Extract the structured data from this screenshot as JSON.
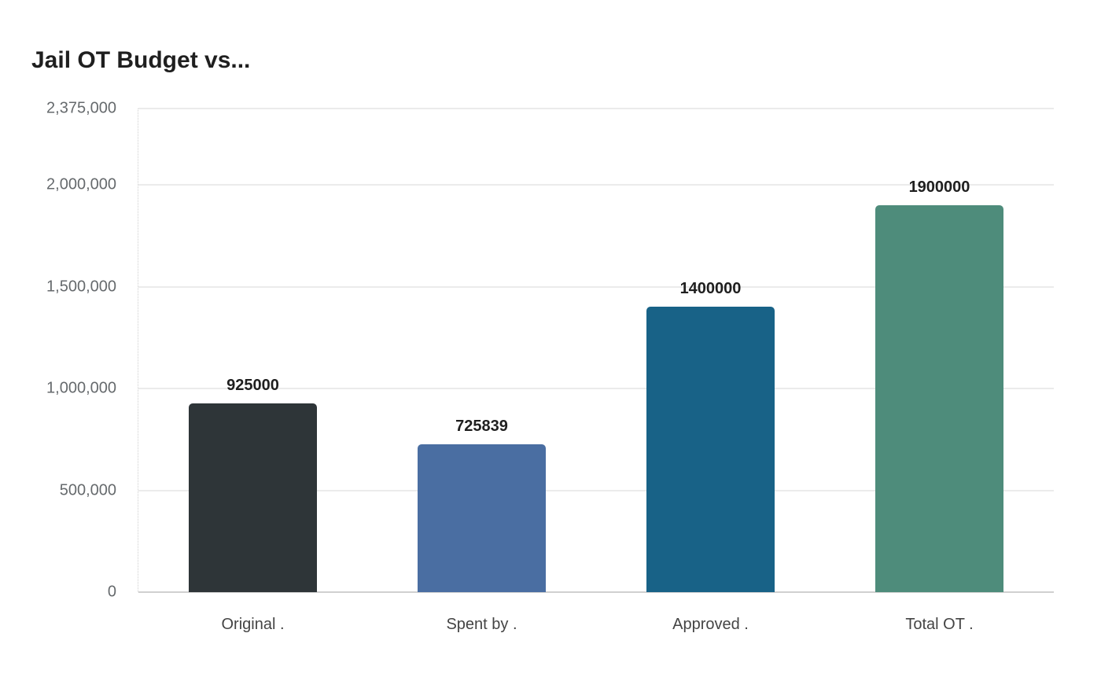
{
  "title": "Jail OT Budget vs...",
  "chart_data": {
    "type": "bar",
    "title": "Jail OT Budget vs...",
    "categories": [
      "Original .",
      "Spent by .",
      "Approved .",
      "Total OT ."
    ],
    "values": [
      925000,
      725839,
      1400000,
      1900000
    ],
    "data_labels": [
      "925000",
      "725839",
      "1400000",
      "1900000"
    ],
    "colors": [
      "#2e3538",
      "#4a6ea2",
      "#186287",
      "#4e8c7b"
    ],
    "xlabel": "",
    "ylabel": "",
    "ylim": [
      0,
      2375000
    ],
    "yticks": [
      0,
      500000,
      1000000,
      1500000,
      2000000,
      2375000
    ],
    "ytick_labels": [
      "0",
      "500,000",
      "1,000,000",
      "1,500,000",
      "2,000,000",
      "2,375,000"
    ],
    "grid": true,
    "legend": "none"
  }
}
